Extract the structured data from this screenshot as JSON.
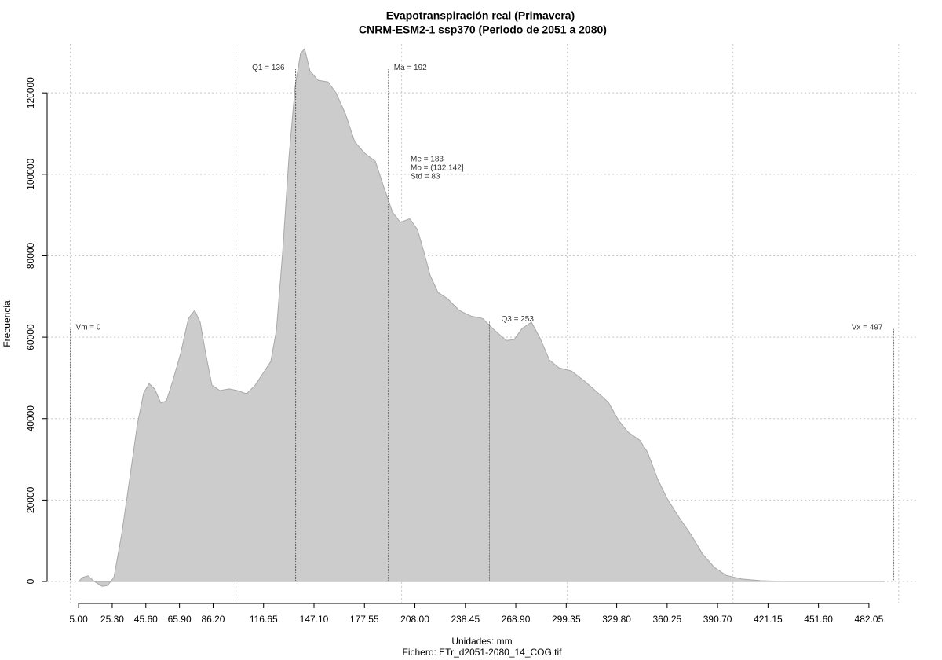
{
  "chart_data": {
    "type": "area",
    "title": "Evapotranspiración real (Primavera)",
    "subtitle": "CNRM-ESM2-1 ssp370 (Periodo de 2051 a 2080)",
    "x_label": "Unidades: mm",
    "caption": "Fichero: ETr_d2051-2080_14_COG.tif",
    "y_label": "Frecuencia",
    "color": "#cccccc",
    "x": [
      5,
      7.4,
      10.7,
      14.5,
      19.2,
      22.5,
      26.3,
      31,
      35.8,
      40.5,
      44.3,
      47.6,
      50.9,
      54.7,
      58,
      61.8,
      66.6,
      71.3,
      75.1,
      78.4,
      81.7,
      85.5,
      90.3,
      95.9,
      100.7,
      106.4,
      111.6,
      116.3,
      121,
      124.4,
      128.2,
      132,
      135.7,
      139,
      141.4,
      144.7,
      149.5,
      155.6,
      160.4,
      166.1,
      171.7,
      177.9,
      184.1,
      188.8,
      194.5,
      199.2,
      204.9,
      209.6,
      213.4,
      217.2,
      221.9,
      227.6,
      234.7,
      241.8,
      248.9,
      256.1,
      263.2,
      267.9,
      272.6,
      278.3,
      283.5,
      289.2,
      294.9,
      302.5,
      310.5,
      318.6,
      324.8,
      330.9,
      336.6,
      343.7,
      348.4,
      354.6,
      360.3,
      367.4,
      374.5,
      381.6,
      388.7,
      395.8,
      405.3,
      417.1,
      431.3,
      491.5
    ],
    "values": [
      0,
      1000,
      1400,
      0,
      -1200,
      -1000,
      1000,
      11600,
      25100,
      38600,
      46300,
      48600,
      47300,
      43800,
      44400,
      49200,
      56000,
      64600,
      66600,
      63700,
      56000,
      48200,
      46900,
      47300,
      46900,
      46100,
      48200,
      51100,
      54000,
      61700,
      81000,
      104200,
      121500,
      129700,
      130800,
      125400,
      123100,
      122700,
      120000,
      114800,
      108000,
      105100,
      103200,
      97400,
      90700,
      88200,
      89100,
      86400,
      81000,
      75200,
      71000,
      69500,
      66600,
      65200,
      64600,
      61700,
      59200,
      59400,
      62100,
      63700,
      59800,
      54400,
      52500,
      51700,
      49200,
      46300,
      44000,
      39600,
      36700,
      34700,
      31800,
      25100,
      20300,
      15800,
      11600,
      6800,
      3500,
      1500,
      600,
      200,
      0,
      0
    ],
    "xlim": [
      -14,
      511
    ],
    "ylim": [
      -5400,
      132000
    ],
    "xticks": [
      {
        "value": 5,
        "label": "5.00"
      },
      {
        "value": 25.3,
        "label": "25.30"
      },
      {
        "value": 45.6,
        "label": "45.60"
      },
      {
        "value": 65.9,
        "label": "65.90"
      },
      {
        "value": 86.2,
        "label": "86.20"
      },
      {
        "value": 116.65,
        "label": "116.65"
      },
      {
        "value": 147.1,
        "label": "147.10"
      },
      {
        "value": 177.55,
        "label": "177.55"
      },
      {
        "value": 208,
        "label": "208.00"
      },
      {
        "value": 238.45,
        "label": "238.45"
      },
      {
        "value": 268.9,
        "label": "268.90"
      },
      {
        "value": 299.35,
        "label": "299.35"
      },
      {
        "value": 329.8,
        "label": "329.80"
      },
      {
        "value": 360.25,
        "label": "360.25"
      },
      {
        "value": 390.7,
        "label": "390.70"
      },
      {
        "value": 421.15,
        "label": "421.15"
      },
      {
        "value": 451.6,
        "label": "451.60"
      },
      {
        "value": 482.05,
        "label": "482.05"
      }
    ],
    "yticks": [
      0,
      20000,
      40000,
      60000,
      80000,
      100000,
      120000
    ],
    "xgrid": [
      0,
      100,
      200,
      300,
      400,
      500
    ],
    "grid": true,
    "annotations": [
      {
        "text": "Vm = 0",
        "x": 0,
        "y": 62000
      },
      {
        "text": "Q1 = 136",
        "x": 136,
        "y": 125800
      },
      {
        "text": "Ma = 192",
        "x": 192,
        "y": 125800
      },
      {
        "text": "Q3 = 253",
        "x": 253,
        "y": 64000
      },
      {
        "text": "Vx = 497",
        "x": 497,
        "y": 62000
      }
    ],
    "stats": [
      "Me = 183",
      "Mo = (132,142]",
      "Std = 83"
    ]
  }
}
